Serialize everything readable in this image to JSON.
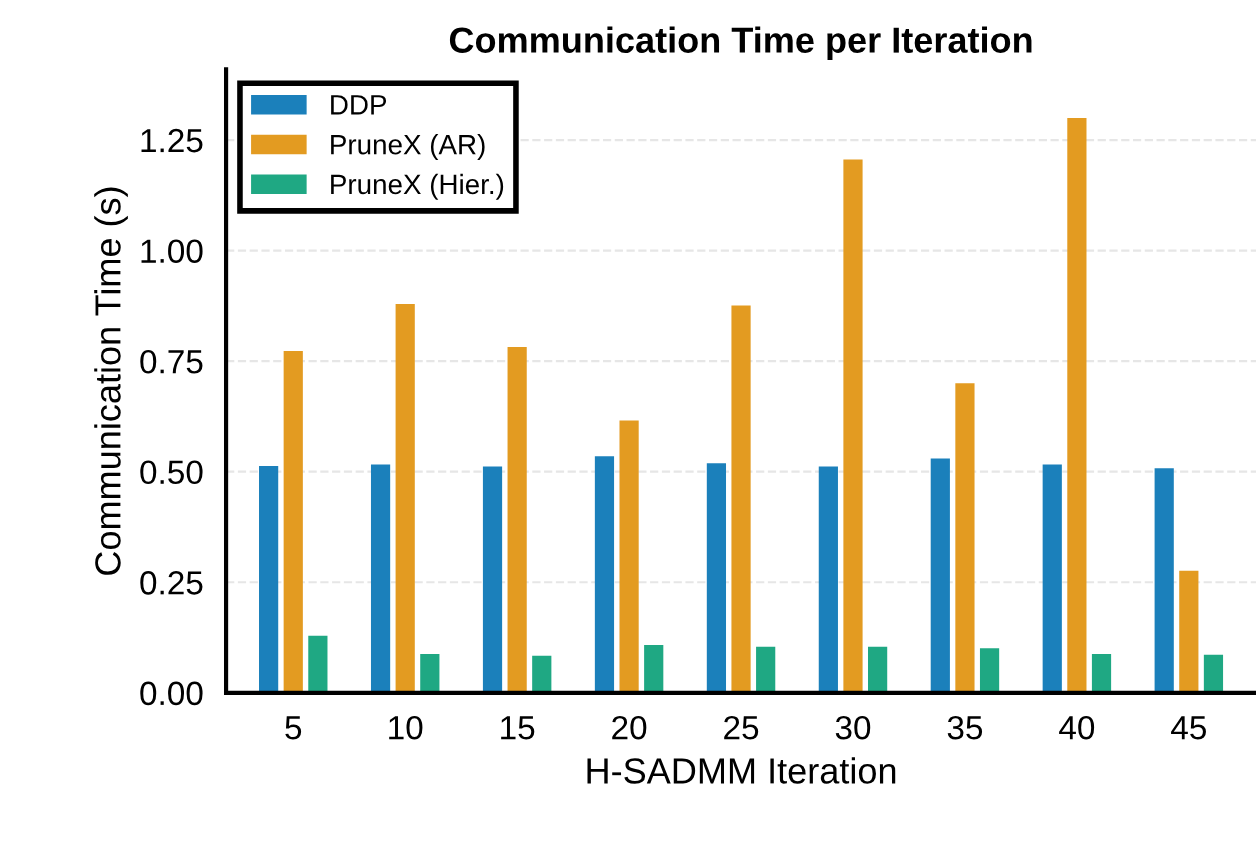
{
  "chart_data": {
    "type": "bar",
    "title": "Communication Time per Iteration",
    "xlabel": "H-SADMM Iteration",
    "ylabel": "Communication Time (s)",
    "categories": [
      "5",
      "10",
      "15",
      "20",
      "25",
      "30",
      "35",
      "40",
      "45"
    ],
    "series": [
      {
        "name": "DDP",
        "color": "#1b80bb",
        "values": [
          0.513,
          0.516,
          0.512,
          0.535,
          0.519,
          0.512,
          0.53,
          0.516,
          0.508
        ]
      },
      {
        "name": "PruneX (AR)",
        "color": "#e39b21",
        "values": [
          0.773,
          0.879,
          0.782,
          0.616,
          0.876,
          1.206,
          0.7,
          1.3,
          0.276
        ]
      },
      {
        "name": "PruneX (Hier.)",
        "color": "#1fa883",
        "values": [
          0.129,
          0.088,
          0.084,
          0.108,
          0.104,
          0.104,
          0.101,
          0.088,
          0.086
        ]
      }
    ],
    "ylim": [
      0,
      1.41
    ],
    "yticks": [
      {
        "value": 0,
        "label": "0.00"
      },
      {
        "value": 0.25,
        "label": "0.25"
      },
      {
        "value": 0.5,
        "label": "0.50"
      },
      {
        "value": 0.75,
        "label": "0.75"
      },
      {
        "value": 1.0,
        "label": "1.00"
      },
      {
        "value": 1.25,
        "label": "1.25"
      }
    ],
    "grid": "y",
    "legend": "top left"
  }
}
